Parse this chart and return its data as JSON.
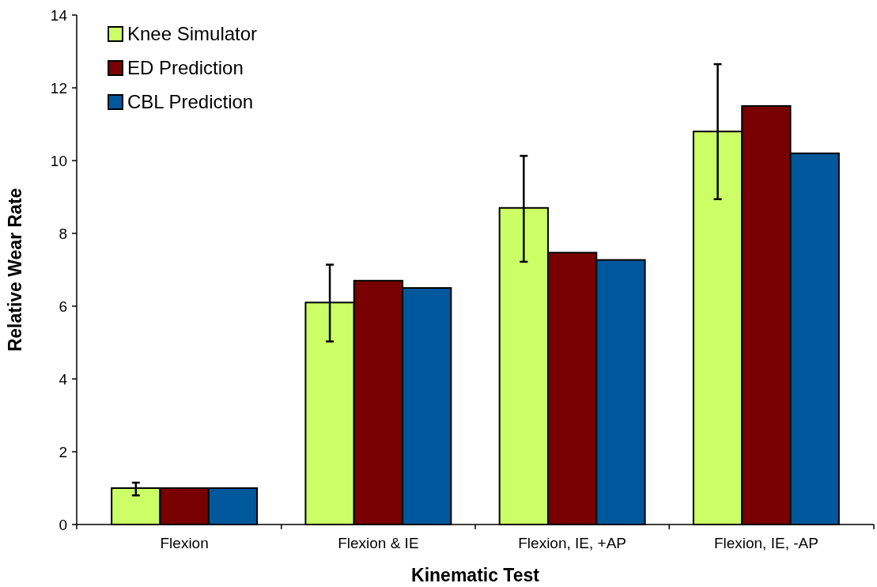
{
  "chart_data": {
    "type": "bar",
    "xlabel": "Kinematic Test",
    "ylabel": "Relative Wear Rate",
    "categories": [
      "Flexion",
      "Flexion & IE",
      "Flexion, IE, +AP",
      "Flexion, IE, -AP"
    ],
    "series": [
      {
        "name": "Knee Simulator",
        "color": "#ccff66",
        "values": [
          1,
          6.1,
          8.7,
          10.8
        ],
        "errors": [
          [
            0.8,
            1.15
          ],
          [
            5.03,
            7.14
          ],
          [
            7.22,
            10.13
          ],
          [
            8.94,
            12.65
          ]
        ]
      },
      {
        "name": "ED Prediction",
        "color": "#780000",
        "values": [
          1,
          6.7,
          7.47,
          11.5
        ]
      },
      {
        "name": "CBL Prediction",
        "color": "#00589c",
        "values": [
          1,
          6.5,
          7.27,
          10.2
        ]
      }
    ],
    "ylim": [
      0,
      14
    ],
    "yticks": [
      0,
      2,
      4,
      6,
      8,
      10,
      12,
      14
    ],
    "grid": false,
    "legend": "top left"
  }
}
